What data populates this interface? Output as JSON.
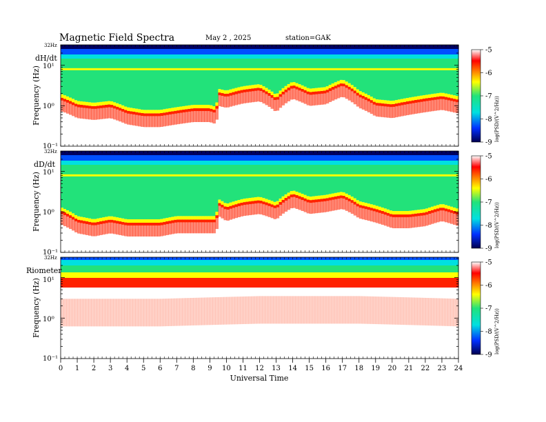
{
  "header": {
    "title": "Magnetic  Field  Spectra",
    "date": "May 2  , 2025",
    "station": "station=GAK"
  },
  "colors": {
    "white": "#ffffff",
    "red": "#ff2200",
    "yellow": "#ffff00",
    "green": "#22e27a",
    "cyan": "#00e0e0",
    "blue": "#0050ff",
    "navy": "#000060"
  },
  "chart_data": [
    {
      "type": "heatmap",
      "panel_label": "dH/dt",
      "ylabel": "Frequency  (Hz)",
      "ytick_labels": [
        "32Hz",
        "10¹",
        "10⁰",
        "10⁻¹"
      ],
      "y_scale": "log",
      "ylim": [
        0.1,
        32
      ],
      "xlim": [
        0,
        24
      ],
      "cutoff_hz_by_hour": {
        "x": [
          0,
          1,
          2,
          3,
          4,
          5,
          6,
          7,
          8,
          9,
          9.4,
          9.5,
          10,
          11,
          12,
          13,
          14,
          15,
          16,
          17,
          18,
          19,
          20,
          21,
          22,
          23,
          24
        ],
        "y": [
          1.5,
          1.0,
          0.9,
          1.0,
          0.7,
          0.6,
          0.6,
          0.7,
          0.8,
          0.8,
          0.7,
          2.0,
          1.8,
          2.3,
          2.6,
          1.4,
          3.0,
          2.0,
          2.2,
          3.4,
          1.8,
          1.1,
          1.0,
          1.2,
          1.4,
          1.6,
          1.3
        ]
      },
      "colorbar": {
        "label": "log(PSD/(V^2/Hz))",
        "ticks": [
          "-5",
          "-6",
          "-7",
          "-8",
          "-9"
        ],
        "range": [
          -9,
          -5
        ]
      }
    },
    {
      "type": "heatmap",
      "panel_label": "dD/dt",
      "ylabel": "Frequency  (Hz)",
      "ytick_labels": [
        "32Hz",
        "10¹",
        "10⁰",
        "10⁻¹"
      ],
      "y_scale": "log",
      "ylim": [
        0.1,
        32
      ],
      "xlim": [
        0,
        24
      ],
      "cutoff_hz_by_hour": {
        "x": [
          0,
          1,
          2,
          3,
          4,
          5,
          6,
          7,
          8,
          9,
          9.4,
          9.5,
          10,
          11,
          12,
          13,
          14,
          15,
          16,
          17,
          18,
          19,
          20,
          21,
          22,
          23,
          24
        ],
        "y": [
          1.0,
          0.6,
          0.5,
          0.6,
          0.5,
          0.5,
          0.5,
          0.6,
          0.6,
          0.6,
          0.6,
          1.6,
          1.2,
          1.6,
          1.8,
          1.3,
          2.6,
          1.8,
          2.0,
          2.4,
          1.4,
          1.1,
          0.8,
          0.8,
          0.9,
          1.2,
          0.9
        ]
      },
      "colorbar": {
        "label": "log(PSD/(V^2/Hz))",
        "ticks": [
          "-5",
          "-6",
          "-7",
          "-8",
          "-9"
        ],
        "range": [
          -9,
          -5
        ]
      }
    },
    {
      "type": "heatmap",
      "panel_label": "Riometer",
      "ylabel": "Frequency  (Hz)",
      "ytick_labels": [
        "32Hz",
        "10¹",
        "10⁰",
        "10⁻¹"
      ],
      "y_scale": "log",
      "ylim": [
        0.1,
        32
      ],
      "xlim": [
        0,
        24
      ],
      "cutoff_hz_by_hour": {
        "x": [
          0,
          6,
          12,
          18,
          24
        ],
        "y": [
          3.0,
          3.0,
          3.5,
          3.5,
          3.0
        ]
      },
      "colorbar": {
        "label": "log(PSD/(V^2/Hz))",
        "ticks": [
          "-5",
          "-6",
          "-7",
          "-8",
          "-9"
        ],
        "range": [
          -9,
          -5
        ]
      }
    }
  ],
  "xaxis": {
    "label": "Universal  Time",
    "ticks": [
      "0",
      "1",
      "2",
      "3",
      "4",
      "5",
      "6",
      "7",
      "8",
      "9",
      "10",
      "11",
      "12",
      "13",
      "14",
      "15",
      "16",
      "17",
      "18",
      "19",
      "20",
      "21",
      "22",
      "23",
      "24"
    ]
  }
}
